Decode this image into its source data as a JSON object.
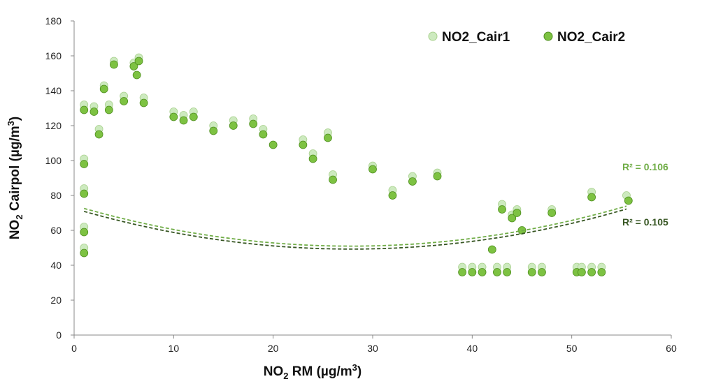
{
  "chart_data": {
    "type": "scatter",
    "xlabel": {
      "base": "NO",
      "sub": "2",
      "rest": " RM (µg/m",
      "sup": "3",
      "end": ")"
    },
    "ylabel": {
      "base": "NO",
      "sub": "2",
      "rest": " Cairpol (µg/m",
      "sup": "3",
      "end": ")"
    },
    "xlim": [
      0,
      60
    ],
    "ylim": [
      0,
      180
    ],
    "xticks": [
      "0",
      "10",
      "20",
      "30",
      "40",
      "50",
      "60"
    ],
    "yticks": [
      "0",
      "20",
      "40",
      "60",
      "80",
      "100",
      "120",
      "140",
      "160",
      "180"
    ],
    "grid": false,
    "legend_position": "top-right",
    "colors": {
      "cair1_fill": "#cdeabf",
      "cair1_stroke": "#a9d18e",
      "cair2_fill": "#7dc242",
      "cair2_stroke": "#4f8f1f",
      "trend1": "#70ad47",
      "trend2": "#375623"
    },
    "series": [
      {
        "name": "NO2_Cair1",
        "values": [
          [
            1,
            132
          ],
          [
            1,
            101
          ],
          [
            1,
            84
          ],
          [
            1,
            62
          ],
          [
            1,
            50
          ],
          [
            2,
            131
          ],
          [
            2.5,
            118
          ],
          [
            3,
            143
          ],
          [
            3.5,
            132
          ],
          [
            4,
            157
          ],
          [
            5,
            137
          ],
          [
            6,
            156
          ],
          [
            6.5,
            159
          ],
          [
            7,
            136
          ],
          [
            10,
            128
          ],
          [
            11,
            126
          ],
          [
            12,
            128
          ],
          [
            14,
            120
          ],
          [
            16,
            123
          ],
          [
            18,
            124
          ],
          [
            19,
            118
          ],
          [
            23,
            112
          ],
          [
            24,
            104
          ],
          [
            25.5,
            116
          ],
          [
            26,
            92
          ],
          [
            30,
            97
          ],
          [
            32,
            83
          ],
          [
            34,
            91
          ],
          [
            36.5,
            93
          ],
          [
            43,
            75
          ],
          [
            44,
            69
          ],
          [
            44.5,
            72
          ],
          [
            48,
            72
          ],
          [
            52,
            82
          ],
          [
            55.5,
            80
          ],
          [
            42.5,
            39
          ],
          [
            43.5,
            39
          ],
          [
            46,
            39
          ],
          [
            47,
            39
          ],
          [
            50.5,
            39
          ],
          [
            51,
            39
          ],
          [
            52,
            39
          ],
          [
            53,
            39
          ],
          [
            39,
            39
          ],
          [
            40,
            39
          ],
          [
            41,
            39
          ]
        ]
      },
      {
        "name": "NO2_Cair2",
        "values": [
          [
            1,
            129
          ],
          [
            1,
            98
          ],
          [
            1,
            81
          ],
          [
            1,
            59
          ],
          [
            1,
            47
          ],
          [
            2,
            128
          ],
          [
            2.5,
            115
          ],
          [
            3,
            141
          ],
          [
            3.5,
            129
          ],
          [
            4,
            155
          ],
          [
            5,
            134
          ],
          [
            6,
            154
          ],
          [
            6.5,
            157
          ],
          [
            6.3,
            149
          ],
          [
            7,
            133
          ],
          [
            10,
            125
          ],
          [
            11,
            123
          ],
          [
            12,
            125
          ],
          [
            14,
            117
          ],
          [
            16,
            120
          ],
          [
            18,
            121
          ],
          [
            19,
            115
          ],
          [
            20,
            109
          ],
          [
            23,
            109
          ],
          [
            24,
            101
          ],
          [
            25.5,
            113
          ],
          [
            26,
            89
          ],
          [
            30,
            95
          ],
          [
            32,
            80
          ],
          [
            34,
            88
          ],
          [
            36.5,
            91
          ],
          [
            42,
            49
          ],
          [
            43,
            72
          ],
          [
            44,
            67
          ],
          [
            44.5,
            70
          ],
          [
            45,
            60
          ],
          [
            48,
            70
          ],
          [
            52,
            79
          ],
          [
            55.7,
            77
          ],
          [
            42.5,
            36
          ],
          [
            43.5,
            36
          ],
          [
            46,
            36
          ],
          [
            47,
            36
          ],
          [
            50.5,
            36
          ],
          [
            51,
            36
          ],
          [
            52,
            36
          ],
          [
            53,
            36
          ],
          [
            39,
            36
          ],
          [
            40,
            36
          ],
          [
            41,
            36
          ]
        ]
      }
    ],
    "trendlines": [
      {
        "series": "NO2_Cair1",
        "type": "polynomial",
        "label": "R² = 0.106",
        "coeffs": [
          0.03,
          -1.67,
          74.2
        ]
      },
      {
        "series": "NO2_Cair2",
        "type": "polynomial",
        "label": "R² = 0.105",
        "coeffs": [
          0.03,
          -1.67,
          72.5
        ]
      }
    ]
  }
}
